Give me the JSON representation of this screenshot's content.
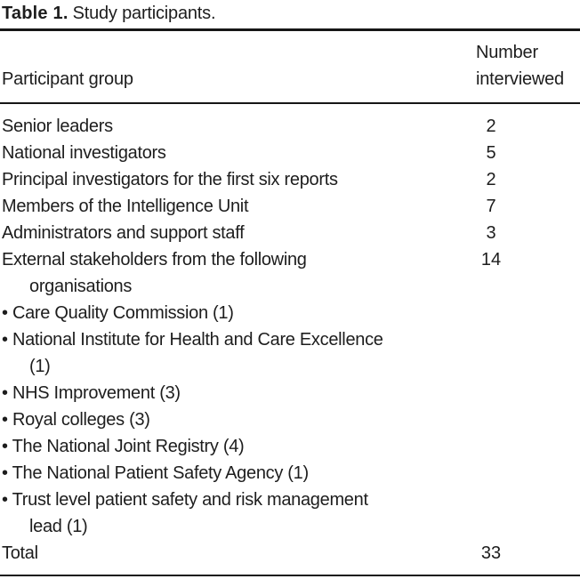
{
  "caption": {
    "label": "Table 1.",
    "text": "Study participants."
  },
  "table": {
    "columns": [
      "Participant group",
      "Number\ninterviewed"
    ],
    "rows": [
      {
        "label": "Senior leaders",
        "value": "2"
      },
      {
        "label": "National investigators",
        "value": "5"
      },
      {
        "label": "Principal investigators for the first six reports",
        "value": "2"
      },
      {
        "label": "Members of the Intelligence Unit",
        "value": "7"
      },
      {
        "label": "Administrators and support staff",
        "value": "3"
      },
      {
        "label": "External stakeholders from the following\norganisations",
        "value": "14"
      },
      {
        "label": "• Care Quality Commission (1)",
        "value": ""
      },
      {
        "label": "• National Institute for Health and Care Excellence\n(1)",
        "value": ""
      },
      {
        "label": "• NHS Improvement (3)",
        "value": ""
      },
      {
        "label": "• Royal colleges (3)",
        "value": ""
      },
      {
        "label": "• The National Joint Registry (4)",
        "value": ""
      },
      {
        "label": "• The National Patient Safety Agency (1)",
        "value": ""
      },
      {
        "label": "• Trust level patient safety and risk management\nlead (1)",
        "value": ""
      },
      {
        "label": "Total",
        "value": "33"
      }
    ]
  }
}
